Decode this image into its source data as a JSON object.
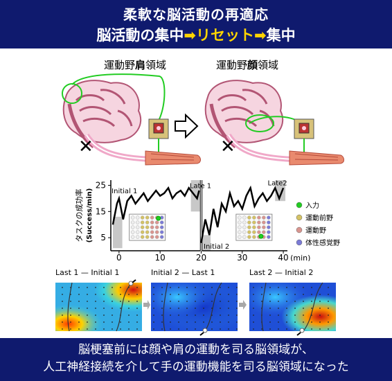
{
  "header": {
    "title_line1": "柔軟な脳活動の再適応",
    "line2_part1": "脳活動の集中",
    "line2_arrow1": "➡",
    "line2_part2": "リセット",
    "line2_arrow2": "➡",
    "line2_part3": "集中"
  },
  "regions": {
    "left_pre": "運動野",
    "left_bold": "肩",
    "left_post": "領域",
    "right_pre": "運動野",
    "right_bold": "顔",
    "right_post": "領域"
  },
  "chart_data": {
    "type": "line",
    "ylabel": "タスクの成功率",
    "ylabel_unit": "(Success/min)",
    "xlabel_unit": "(min)",
    "x_ticks": [
      "0",
      "10",
      "20",
      "30",
      "40"
    ],
    "y_ticks": [
      "5",
      "15",
      "25"
    ],
    "xlim": [
      -2,
      41
    ],
    "ylim": [
      0,
      27
    ],
    "annotations": [
      "Initial 1",
      "Late 1",
      "Initial 2",
      "Late2"
    ],
    "series": [
      {
        "x": [
          -1.5,
          -1,
          -0.5,
          0,
          1,
          2,
          3,
          4,
          5,
          6,
          7,
          8,
          9,
          10,
          11,
          12,
          13,
          14,
          15,
          16,
          17,
          18,
          19,
          19.5
        ],
        "values": [
          10,
          14,
          18,
          20,
          12,
          19,
          21,
          18,
          20,
          22,
          19,
          21,
          23,
          21,
          22,
          24,
          20,
          22,
          23,
          21,
          24,
          22,
          20,
          23
        ]
      },
      {
        "x": [
          20,
          21,
          22,
          23,
          24,
          25,
          26,
          27,
          28,
          29,
          30,
          31,
          32,
          33,
          34,
          35,
          36,
          37,
          38,
          39,
          40
        ],
        "values": [
          3,
          12,
          6,
          16,
          9,
          18,
          15,
          22,
          17,
          19,
          16,
          21,
          24,
          17,
          20,
          22,
          19,
          21,
          24,
          20,
          24
        ]
      }
    ],
    "legend": [
      {
        "label": "入力",
        "color": "#22cc22"
      },
      {
        "label": "運動前野",
        "color": "#d4c266"
      },
      {
        "label": "運動野",
        "color": "#d9958f"
      },
      {
        "label": "体性感覚野",
        "color": "#7b7bd6"
      }
    ]
  },
  "maps": {
    "titles": [
      "Last 1 — Initial 1",
      "Initial 2 — Last 1",
      "Last 2 — Initial 2"
    ]
  },
  "footer": {
    "line1": "脳梗塞前には顔や肩の運動を司る脳領域が、",
    "line2": "人工神経接続を介して手の運動機能を司る脳領域になった"
  },
  "colors": {
    "banner": "#0f1a6e",
    "highlight": "#ffd400",
    "wire": "#22cc22"
  }
}
